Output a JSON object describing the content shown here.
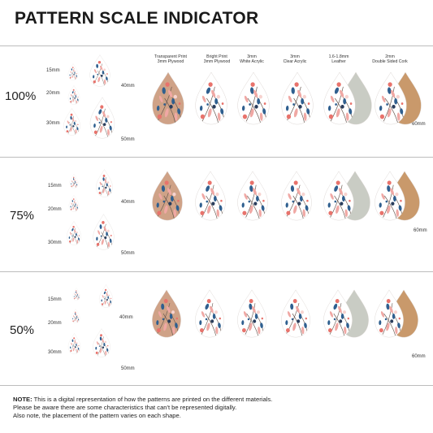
{
  "title": "PATTERN SCALE INDICATOR",
  "scales": [
    {
      "percent": "100%",
      "top": 0
    },
    {
      "percent": "75%",
      "top": 0
    },
    {
      "percent": "50%",
      "top": 0
    }
  ],
  "size_labels": [
    "15mm",
    "20mm",
    "30mm",
    "40mm",
    "50mm"
  ],
  "materials": [
    {
      "line1": "Transparent Print",
      "line2": "3mm Plywood",
      "surface": "#cfa287"
    },
    {
      "line1": "Bright Print",
      "line2": "3mm Plywood",
      "surface": "#ffffff"
    },
    {
      "line1": "3mm",
      "line2": "White Acrylic",
      "surface": "#ffffff"
    },
    {
      "line1": "3mm",
      "line2": "Clear Acrylic",
      "surface": "#ffffff"
    },
    {
      "line1": "1.6-1.8mm",
      "line2": "Leather",
      "surface": "#ffffff"
    },
    {
      "line1": "2mm",
      "line2": "Double Sided Cork",
      "surface": "#ffffff"
    }
  ],
  "back_colors": {
    "leather": "#c9ccc4",
    "cork": "#c9996b"
  },
  "size_label_60": "60mm",
  "colors": {
    "pink": "#f0a8a4",
    "coral": "#e8736c",
    "blue": "#2f5f8f",
    "navy": "#2a3d5c",
    "stem": "#6b5a52",
    "blush": "#f7d3cf"
  },
  "note": {
    "label": "NOTE:",
    "line1": "This is a digital representation of how the patterns are printed on the different materials.",
    "line2": "Please be aware there are some characteristics that can't be represented digitally.",
    "line3": "Also note, the placement of the pattern varies on each shape."
  }
}
